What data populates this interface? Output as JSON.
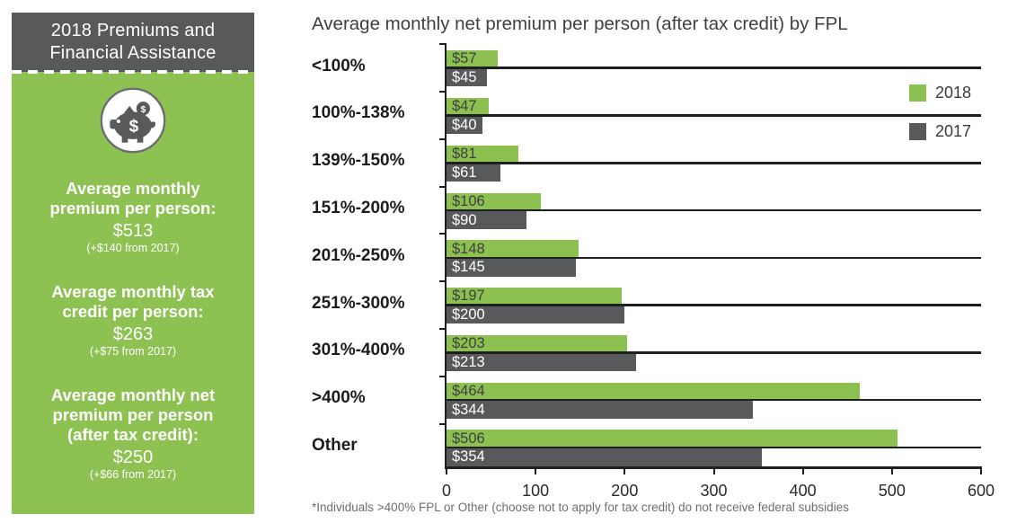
{
  "sidebar": {
    "title_line1": "2018 Premiums and",
    "title_line2": "Financial Assistance",
    "icon": "piggy-bank-icon",
    "stats": [
      {
        "label": "Average monthly premium per person:",
        "value": "$513",
        "change": "(+$140 from 2017)"
      },
      {
        "label": "Average monthly tax credit per person:",
        "value": "$263",
        "change": "(+$75 from 2017)"
      },
      {
        "label": "Average monthly net premium per person (after tax credit):",
        "value": "$250",
        "change": "(+$66 from 2017)"
      }
    ],
    "colors": {
      "header_bg": "#58595B",
      "panel_bg": "#8DC152",
      "text": "#FFFFFF"
    }
  },
  "chart_data": {
    "type": "bar",
    "orientation": "horizontal",
    "title": "Average monthly net premium per person (after tax credit) by FPL",
    "categories": [
      "<100%",
      "100%-138%",
      "139%-150%",
      "151%-200%",
      "201%-250%",
      "251%-300%",
      "301%-400%",
      ">400%",
      "Other"
    ],
    "series": [
      {
        "name": "2018",
        "color": "#8CC152",
        "label_color": "#3E3F41",
        "values": [
          57,
          47,
          81,
          106,
          148,
          197,
          203,
          464,
          506
        ],
        "value_labels": [
          "$57",
          "$47",
          "$81",
          "$106",
          "$148",
          "$197",
          "$203",
          "$464",
          "$506"
        ]
      },
      {
        "name": "2017",
        "color": "#58595B",
        "label_color": "#FFFFFF",
        "values": [
          45,
          40,
          61,
          90,
          145,
          200,
          213,
          344,
          354
        ],
        "value_labels": [
          "$45",
          "$40",
          "$61",
          "$90",
          "$145",
          "$200",
          "$213",
          "$344",
          "$354"
        ]
      }
    ],
    "xlim": [
      0,
      600
    ],
    "x_ticks": [
      "0",
      "100",
      "200",
      "300",
      "400",
      "500",
      "600"
    ],
    "grid": "horizontal lines at each category center",
    "legend_position": "top-right",
    "footnote": "*Individuals >400% FPL or Other (choose not to apply for tax credit) do not receive federal subsidies"
  }
}
